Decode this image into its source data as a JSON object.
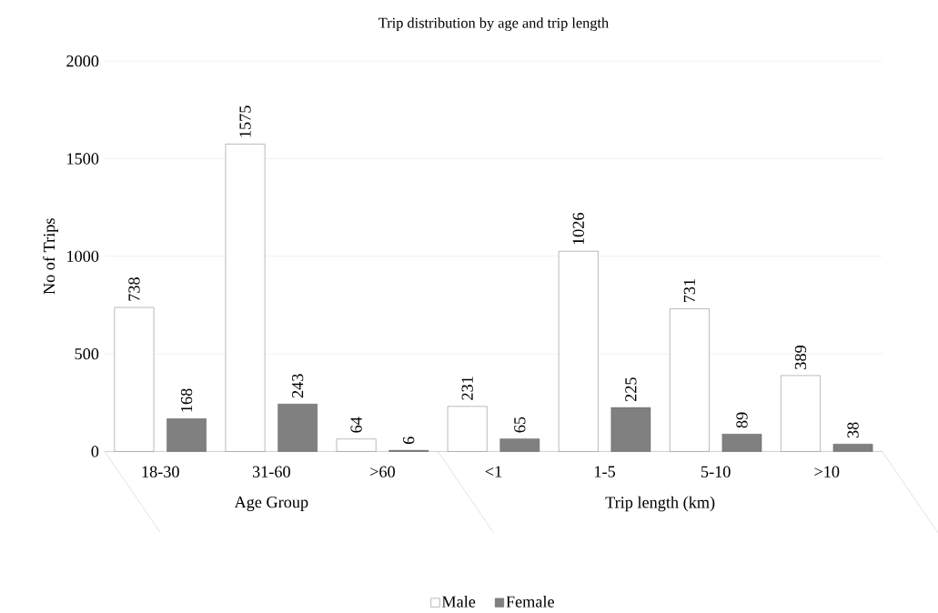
{
  "chart_data": {
    "type": "bar",
    "title": "Trip distribution by age and trip length",
    "ylabel": "No of Trips",
    "categories": [
      "18-30",
      "31-60",
      ">60",
      "<1",
      "1-5",
      "5-10",
      ">10"
    ],
    "series": [
      {
        "name": "Male",
        "color": "#ffffff",
        "values": [
          738,
          1575,
          64,
          231,
          1026,
          731,
          389
        ]
      },
      {
        "name": "Female",
        "color": "#808080",
        "values": [
          168,
          243,
          6,
          65,
          225,
          89,
          38
        ]
      }
    ],
    "annotations": [
      "Age Group",
      "Trip length (km)"
    ],
    "ylim": [
      0,
      2000
    ],
    "yticks": [
      0,
      500,
      1000,
      1500,
      2000
    ],
    "grid": "y",
    "legend": "bottom",
    "data_labels": true
  }
}
